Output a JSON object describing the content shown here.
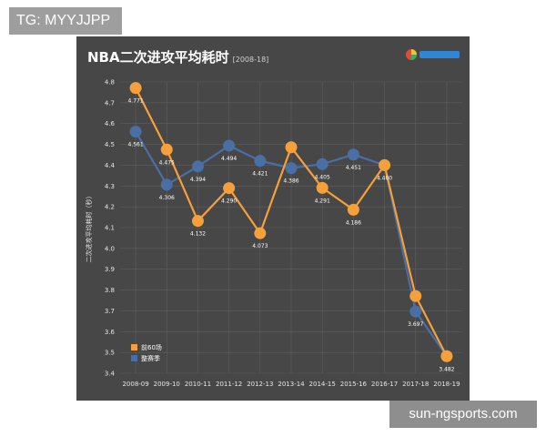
{
  "watermark": {
    "tg": "TG: MYYJJPP",
    "site": "sun-ngsports.com"
  },
  "chart_data": {
    "type": "line",
    "title": "NBA二次进攻平均耗时",
    "subtitle": "[2008-18]",
    "xlabel": "",
    "ylabel": "二次进攻平均耗时（秒）",
    "ylim": [
      3.4,
      4.8
    ],
    "yticks": [
      "4.8",
      "4.7",
      "4.6",
      "4.5",
      "4.4",
      "4.3",
      "4.2",
      "4.1",
      "4.0",
      "3.9",
      "3.8",
      "3.7",
      "3.6",
      "3.5",
      "3.4"
    ],
    "grid": true,
    "legend_position": "bottom-left",
    "categories": [
      "2008-09",
      "2009-10",
      "2010-11",
      "2011-12",
      "2012-13",
      "2013-14",
      "2014-15",
      "2015-16",
      "2016-17",
      "2017-18",
      "2018-19"
    ],
    "series": [
      {
        "name": "前60场",
        "color": "#f5a03a",
        "values": [
          4.771,
          4.475,
          4.132,
          4.29,
          4.073,
          4.486,
          4.291,
          4.186,
          4.4,
          3.771,
          3.482
        ]
      },
      {
        "name": "整赛季",
        "color": "#4a6fa5",
        "values": [
          4.561,
          4.306,
          4.394,
          4.494,
          4.421,
          4.386,
          4.405,
          4.451,
          4.4,
          3.697,
          3.482
        ]
      }
    ],
    "data_labels": {
      "前60场": [
        "4.771",
        "4.475",
        "4.132",
        "4.290",
        "4.073",
        "",
        "4.291",
        "4.186",
        "4.400",
        "",
        "3.482"
      ],
      "整赛季": [
        "4.561",
        "4.306",
        "4.394",
        "4.494",
        "4.421",
        "4.386",
        "4.405",
        "4.451",
        "",
        "3.697",
        ""
      ]
    }
  }
}
